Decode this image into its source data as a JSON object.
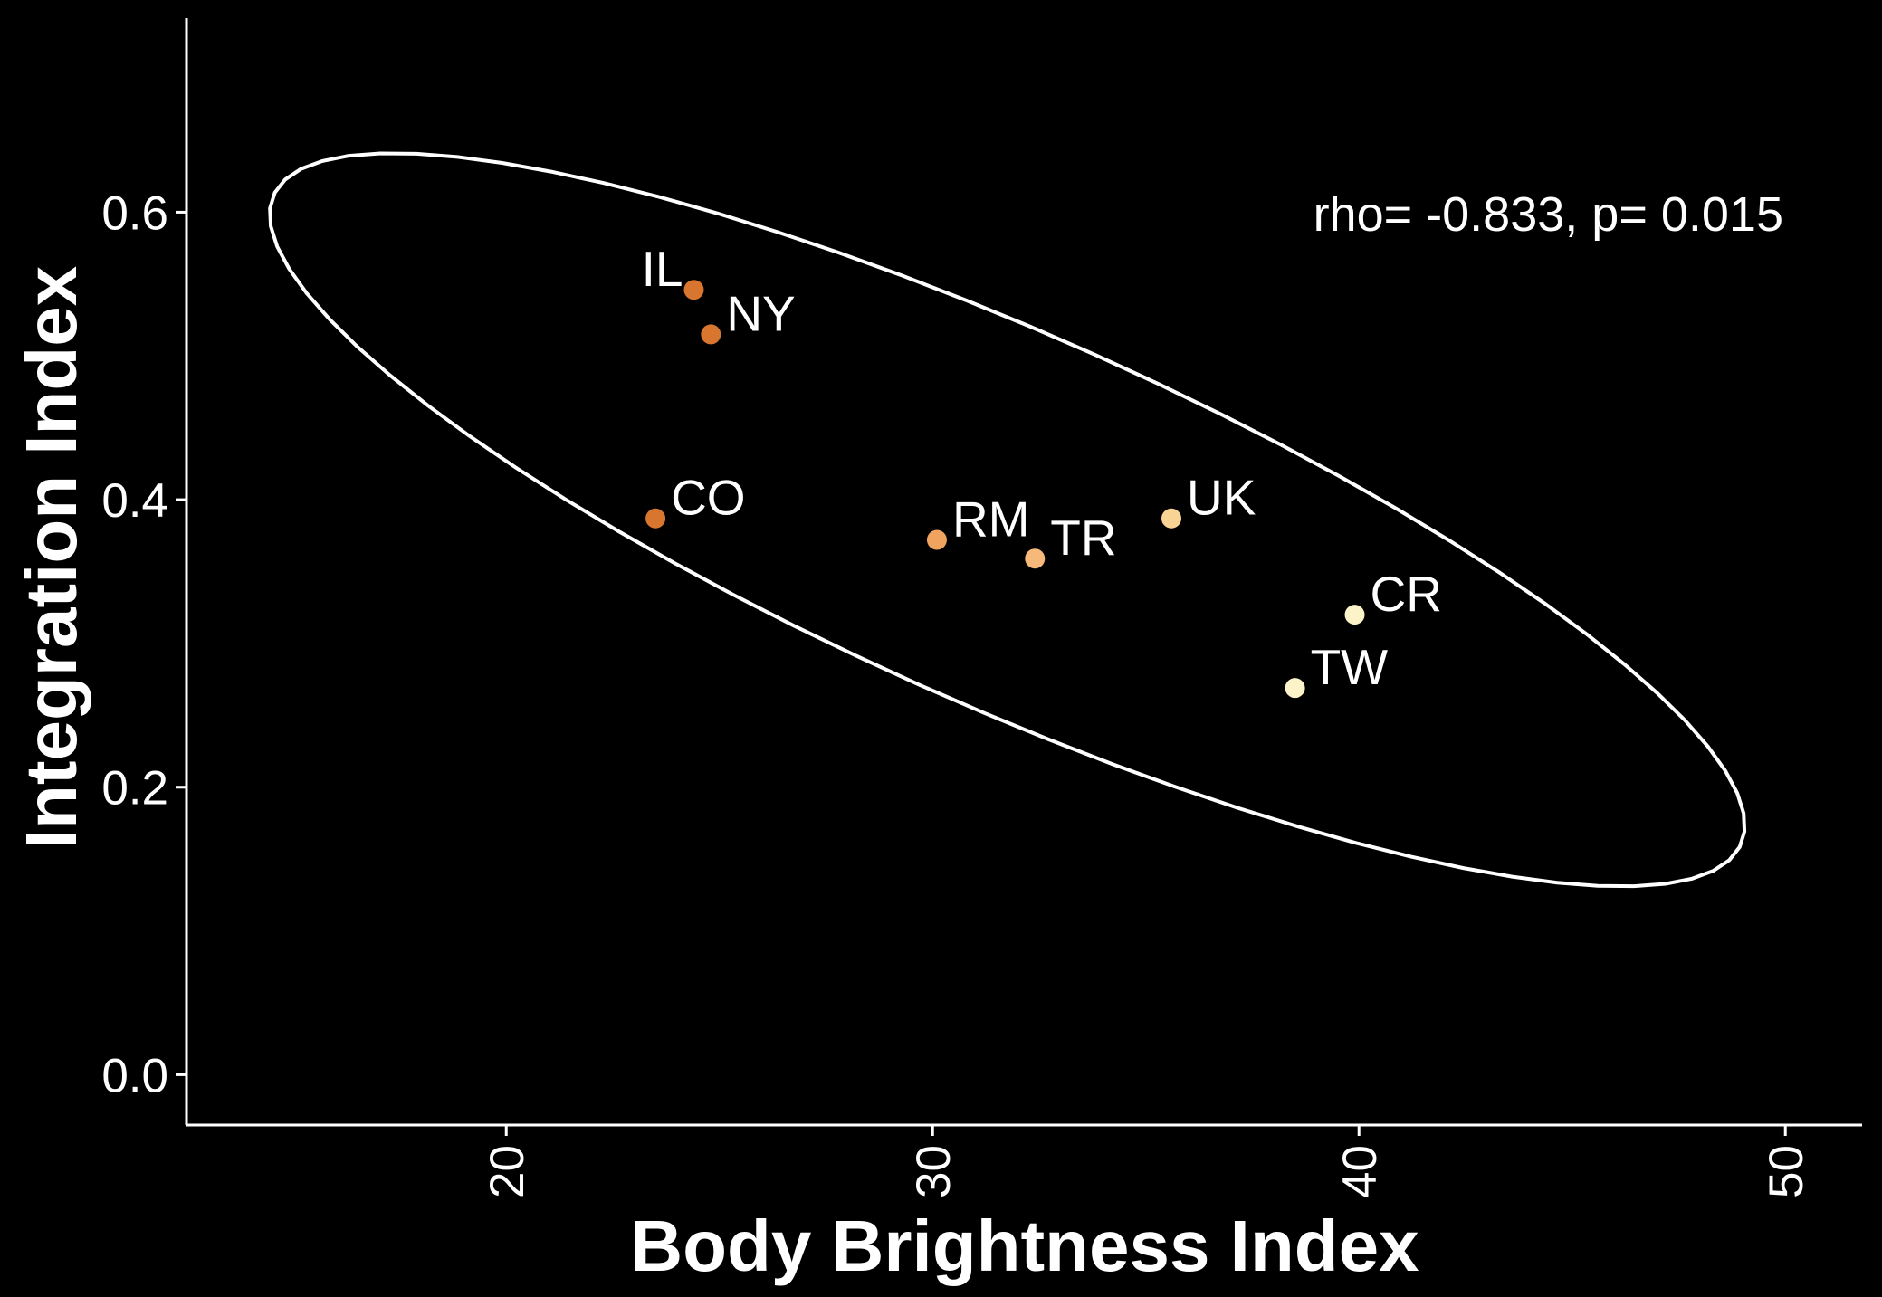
{
  "chart_data": {
    "type": "scatter",
    "xlabel": "Body Brightness Index",
    "ylabel": "Integration Index",
    "annotation": "rho= -0.833, p= 0.015",
    "xlim": [
      12.5,
      51.8
    ],
    "ylim": [
      -0.035,
      0.735
    ],
    "x_ticks": [
      20,
      30,
      40,
      50
    ],
    "y_ticks": [
      0.0,
      0.2,
      0.4,
      0.6
    ],
    "x_tick_labels": [
      "20",
      "30",
      "40",
      "50"
    ],
    "y_tick_labels": [
      "0.0",
      "0.2",
      "0.4",
      "0.6"
    ],
    "grid": false,
    "background": "#000000",
    "axis_color": "#ffffff",
    "points": [
      {
        "label": "IL",
        "x": 24.4,
        "y": 0.546,
        "color": "#d8752f",
        "label_side": "left"
      },
      {
        "label": "NY",
        "x": 24.8,
        "y": 0.515,
        "color": "#d8752f",
        "label_side": "right"
      },
      {
        "label": "CO",
        "x": 23.5,
        "y": 0.387,
        "color": "#d8752f",
        "label_side": "right"
      },
      {
        "label": "RM",
        "x": 30.1,
        "y": 0.372,
        "color": "#f0a35f",
        "label_side": "right"
      },
      {
        "label": "TR",
        "x": 32.4,
        "y": 0.359,
        "color": "#f6b97a",
        "label_side": "right"
      },
      {
        "label": "UK",
        "x": 35.6,
        "y": 0.387,
        "color": "#f9d394",
        "label_side": "right"
      },
      {
        "label": "CR",
        "x": 39.9,
        "y": 0.32,
        "color": "#fdf3c8",
        "label_side": "right"
      },
      {
        "label": "TW",
        "x": 38.5,
        "y": 0.269,
        "color": "#fdf3c8",
        "label_side": "right"
      }
    ],
    "ellipse": {
      "center_x": 31.75,
      "center_y": 0.386,
      "radius_x": 17.3,
      "radius_y": 0.255,
      "rho": -0.833,
      "color": "#ffffff"
    }
  }
}
